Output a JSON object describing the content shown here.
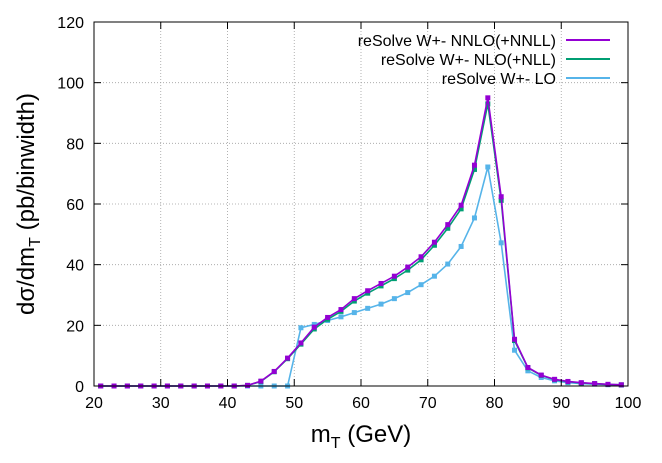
{
  "chart_data": {
    "type": "line",
    "xlabel": "m",
    "xlabel_sub": "T",
    "xlabel_suffix": " (GeV)",
    "ylabel": "dσ/dm",
    "ylabel_sub": "T",
    "ylabel_suffix": " (pb/binwidth)",
    "xlim": [
      20,
      100
    ],
    "ylim": [
      0,
      120
    ],
    "xticks": [
      20,
      30,
      40,
      50,
      60,
      70,
      80,
      90,
      100
    ],
    "yticks": [
      0,
      20,
      40,
      60,
      80,
      100,
      120
    ],
    "grid": true,
    "legend_position": "top-right",
    "x": [
      21,
      23,
      25,
      27,
      29,
      31,
      33,
      35,
      37,
      39,
      41,
      43,
      45,
      47,
      49,
      51,
      53,
      55,
      57,
      59,
      61,
      63,
      65,
      67,
      69,
      71,
      73,
      75,
      77,
      79,
      81,
      83,
      85,
      87,
      89,
      91,
      93,
      95,
      97,
      99
    ],
    "series": [
      {
        "name": "reSolve W+- NNLO(+NNLL)",
        "color": "#9400d3",
        "values": [
          0,
          0,
          0,
          0,
          0,
          0,
          0,
          0,
          0,
          0,
          0,
          0.2,
          1.6,
          4.8,
          9.2,
          14.2,
          19.4,
          22.6,
          25.2,
          28.8,
          31.4,
          33.8,
          36.2,
          39.2,
          42.6,
          47.4,
          53.2,
          59.6,
          72.8,
          95.0,
          62.4,
          15.4,
          6.1,
          3.6,
          2.2,
          1.5,
          1.1,
          0.8,
          0.55,
          0.4
        ]
      },
      {
        "name": "reSolve W+- NLO(+NLL)",
        "color": "#009e73",
        "values": [
          0,
          0,
          0,
          0,
          0,
          0,
          0,
          0,
          0,
          0,
          0,
          0.2,
          1.5,
          4.7,
          9.0,
          13.8,
          18.8,
          22.0,
          24.6,
          28.0,
          30.6,
          33.0,
          35.4,
          38.2,
          41.6,
          46.4,
          52.0,
          58.4,
          71.4,
          93.0,
          61.2,
          15.0,
          6.0,
          3.5,
          2.1,
          1.4,
          1.0,
          0.75,
          0.5,
          0.38
        ]
      },
      {
        "name": "reSolve W+- LO",
        "color": "#56b4e9",
        "values": [
          0,
          0,
          0,
          0,
          0,
          0,
          0,
          0,
          0,
          0,
          0,
          0,
          0,
          0,
          0,
          19.2,
          20.3,
          21.6,
          22.8,
          24.2,
          25.6,
          27.0,
          28.8,
          30.8,
          33.4,
          36.2,
          40.2,
          46.0,
          55.4,
          72.2,
          47.2,
          11.8,
          5.0,
          2.8,
          1.7,
          1.1,
          0.8,
          0.6,
          0.42,
          0.3
        ]
      }
    ]
  }
}
